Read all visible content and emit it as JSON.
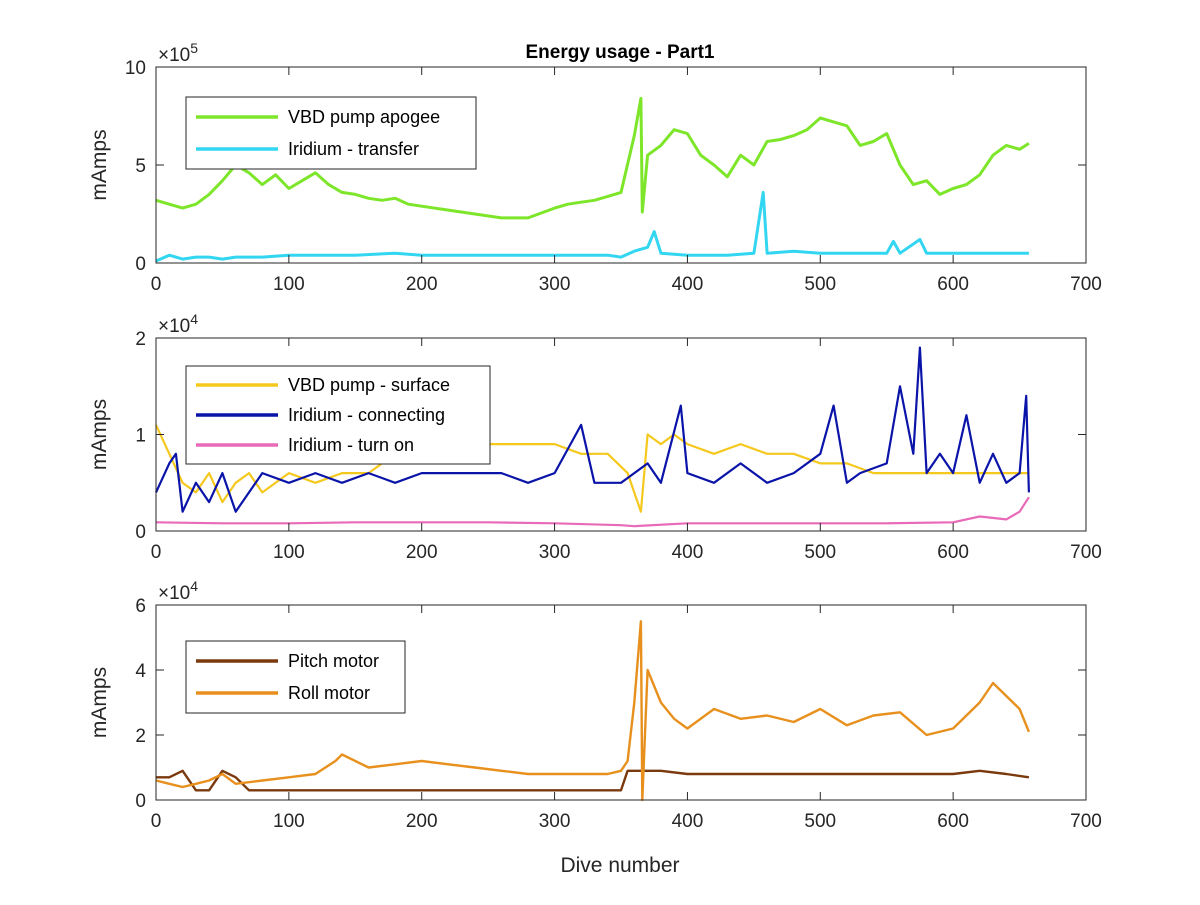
{
  "figure": {
    "title": "Energy usage - Part1",
    "xlabel": "Dive number"
  },
  "chart_data": [
    {
      "type": "line",
      "title": "Energy usage - Part1",
      "xlabel": "",
      "ylabel": "mAmps",
      "xlim": [
        0,
        700
      ],
      "ylim": [
        0,
        10
      ],
      "xticks": [
        "0",
        "100",
        "200",
        "300",
        "400",
        "500",
        "600",
        "700"
      ],
      "yticks": [
        "0",
        "5",
        "10"
      ],
      "yexponent_base": "×10",
      "yexponent_power": "5",
      "grid": false,
      "legend_position": "top-left",
      "series": [
        {
          "name": "VBD pump apogee",
          "color": "#7ee62a",
          "x": [
            0,
            10,
            20,
            30,
            40,
            50,
            60,
            70,
            80,
            90,
            100,
            110,
            120,
            130,
            140,
            150,
            160,
            170,
            180,
            190,
            200,
            220,
            240,
            260,
            280,
            300,
            310,
            320,
            330,
            340,
            350,
            360,
            365,
            366,
            370,
            380,
            390,
            400,
            410,
            420,
            430,
            440,
            450,
            460,
            470,
            480,
            490,
            500,
            510,
            520,
            530,
            540,
            550,
            560,
            570,
            580,
            590,
            600,
            610,
            620,
            630,
            640,
            650,
            657
          ],
          "values": [
            3.2,
            3.0,
            2.8,
            3.0,
            3.5,
            4.2,
            5.0,
            4.6,
            4.0,
            4.5,
            3.8,
            4.2,
            4.6,
            4.0,
            3.6,
            3.5,
            3.3,
            3.2,
            3.3,
            3.0,
            2.9,
            2.7,
            2.5,
            2.3,
            2.3,
            2.8,
            3.0,
            3.1,
            3.2,
            3.4,
            3.6,
            6.5,
            8.4,
            2.6,
            5.5,
            6.0,
            6.8,
            6.6,
            5.5,
            5.0,
            4.4,
            5.5,
            5.0,
            6.2,
            6.3,
            6.5,
            6.8,
            7.4,
            7.2,
            7.0,
            6.0,
            6.2,
            6.6,
            5.0,
            4.0,
            4.2,
            3.5,
            3.8,
            4.0,
            4.5,
            5.5,
            6.0,
            5.8,
            6.1
          ]
        },
        {
          "name": "Iridium - transfer",
          "color": "#33d6f0",
          "x": [
            0,
            10,
            20,
            30,
            40,
            50,
            60,
            80,
            100,
            130,
            150,
            180,
            200,
            250,
            300,
            340,
            350,
            360,
            370,
            375,
            380,
            400,
            430,
            450,
            457,
            460,
            480,
            500,
            520,
            550,
            555,
            560,
            575,
            580,
            600,
            620,
            640,
            657
          ],
          "values": [
            0.1,
            0.4,
            0.2,
            0.3,
            0.3,
            0.2,
            0.3,
            0.3,
            0.4,
            0.4,
            0.4,
            0.5,
            0.4,
            0.4,
            0.4,
            0.4,
            0.3,
            0.6,
            0.8,
            1.6,
            0.5,
            0.4,
            0.4,
            0.5,
            3.6,
            0.5,
            0.6,
            0.5,
            0.5,
            0.5,
            1.1,
            0.5,
            1.2,
            0.5,
            0.5,
            0.5,
            0.5,
            0.5
          ]
        }
      ]
    },
    {
      "type": "line",
      "title": "",
      "xlabel": "",
      "ylabel": "mAmps",
      "xlim": [
        0,
        700
      ],
      "ylim": [
        0,
        2
      ],
      "xticks": [
        "0",
        "100",
        "200",
        "300",
        "400",
        "500",
        "600",
        "700"
      ],
      "yticks": [
        "0",
        "1",
        "2"
      ],
      "yexponent_base": "×10",
      "yexponent_power": "4",
      "grid": false,
      "legend_position": "top-left",
      "series": [
        {
          "name": "VBD pump - surface",
          "color": "#f5c81e",
          "x": [
            0,
            10,
            20,
            30,
            40,
            50,
            60,
            70,
            80,
            100,
            120,
            140,
            160,
            180,
            200,
            220,
            240,
            260,
            280,
            300,
            320,
            340,
            355,
            365,
            370,
            380,
            390,
            400,
            420,
            440,
            460,
            480,
            500,
            520,
            540,
            560,
            580,
            600,
            620,
            640,
            657
          ],
          "values": [
            1.1,
            0.8,
            0.5,
            0.4,
            0.6,
            0.3,
            0.5,
            0.6,
            0.4,
            0.6,
            0.5,
            0.6,
            0.6,
            0.8,
            0.7,
            0.8,
            0.9,
            0.9,
            0.9,
            0.9,
            0.8,
            0.8,
            0.6,
            0.2,
            1.0,
            0.9,
            1.0,
            0.9,
            0.8,
            0.9,
            0.8,
            0.8,
            0.7,
            0.7,
            0.6,
            0.6,
            0.6,
            0.6,
            0.6,
            0.6,
            0.6
          ]
        },
        {
          "name": "Iridium - connecting",
          "color": "#0b14a8",
          "x": [
            0,
            10,
            15,
            20,
            30,
            40,
            50,
            60,
            80,
            100,
            120,
            140,
            160,
            180,
            200,
            220,
            240,
            260,
            280,
            300,
            320,
            330,
            350,
            360,
            370,
            380,
            395,
            400,
            420,
            440,
            460,
            480,
            500,
            510,
            520,
            530,
            550,
            560,
            570,
            575,
            580,
            590,
            600,
            610,
            620,
            630,
            640,
            650,
            655,
            657
          ],
          "values": [
            0.4,
            0.7,
            0.8,
            0.2,
            0.5,
            0.3,
            0.6,
            0.2,
            0.6,
            0.5,
            0.6,
            0.5,
            0.6,
            0.5,
            0.6,
            0.6,
            0.6,
            0.6,
            0.5,
            0.6,
            1.1,
            0.5,
            0.5,
            0.6,
            0.7,
            0.5,
            1.3,
            0.6,
            0.5,
            0.7,
            0.5,
            0.6,
            0.8,
            1.3,
            0.5,
            0.6,
            0.7,
            1.5,
            0.8,
            1.9,
            0.6,
            0.8,
            0.6,
            1.2,
            0.5,
            0.8,
            0.5,
            0.6,
            1.4,
            0.4
          ]
        },
        {
          "name": "Iridium - turn on",
          "color": "#e86ab8",
          "x": [
            0,
            50,
            100,
            150,
            200,
            250,
            300,
            350,
            360,
            400,
            450,
            500,
            550,
            600,
            620,
            640,
            650,
            657
          ],
          "values": [
            0.09,
            0.08,
            0.08,
            0.09,
            0.09,
            0.09,
            0.08,
            0.06,
            0.05,
            0.08,
            0.08,
            0.08,
            0.08,
            0.09,
            0.15,
            0.12,
            0.2,
            0.35
          ]
        }
      ]
    },
    {
      "type": "line",
      "title": "",
      "xlabel": "Dive number",
      "ylabel": "mAmps",
      "xlim": [
        0,
        700
      ],
      "ylim": [
        0,
        6
      ],
      "xticks": [
        "0",
        "100",
        "200",
        "300",
        "400",
        "500",
        "600",
        "700"
      ],
      "yticks": [
        "0",
        "2",
        "4",
        "6"
      ],
      "yexponent_base": "×10",
      "yexponent_power": "4",
      "grid": false,
      "legend_position": "top-left",
      "series": [
        {
          "name": "Pitch motor",
          "color": "#7a3a0e",
          "x": [
            0,
            10,
            20,
            30,
            40,
            50,
            60,
            70,
            80,
            100,
            150,
            200,
            250,
            300,
            350,
            355,
            360,
            370,
            380,
            400,
            450,
            500,
            550,
            600,
            620,
            640,
            657
          ],
          "values": [
            0.7,
            0.7,
            0.9,
            0.3,
            0.3,
            0.9,
            0.7,
            0.3,
            0.3,
            0.3,
            0.3,
            0.3,
            0.3,
            0.3,
            0.3,
            0.9,
            0.9,
            0.9,
            0.9,
            0.8,
            0.8,
            0.8,
            0.8,
            0.8,
            0.9,
            0.8,
            0.7
          ]
        },
        {
          "name": "Roll motor",
          "color": "#e8901e",
          "x": [
            0,
            10,
            20,
            30,
            40,
            50,
            60,
            80,
            100,
            120,
            135,
            140,
            160,
            180,
            200,
            220,
            240,
            260,
            280,
            300,
            320,
            340,
            350,
            355,
            360,
            365,
            366,
            370,
            380,
            390,
            400,
            420,
            440,
            460,
            480,
            500,
            520,
            540,
            560,
            580,
            600,
            620,
            630,
            640,
            650,
            657
          ],
          "values": [
            0.6,
            0.5,
            0.4,
            0.5,
            0.6,
            0.8,
            0.5,
            0.6,
            0.7,
            0.8,
            1.2,
            1.4,
            1.0,
            1.1,
            1.2,
            1.1,
            1.0,
            0.9,
            0.8,
            0.8,
            0.8,
            0.8,
            0.9,
            1.2,
            3.0,
            5.5,
            0.0,
            4.0,
            3.0,
            2.5,
            2.2,
            2.8,
            2.5,
            2.6,
            2.4,
            2.8,
            2.3,
            2.6,
            2.7,
            2.0,
            2.2,
            3.0,
            3.6,
            3.2,
            2.8,
            2.1
          ]
        }
      ]
    }
  ]
}
